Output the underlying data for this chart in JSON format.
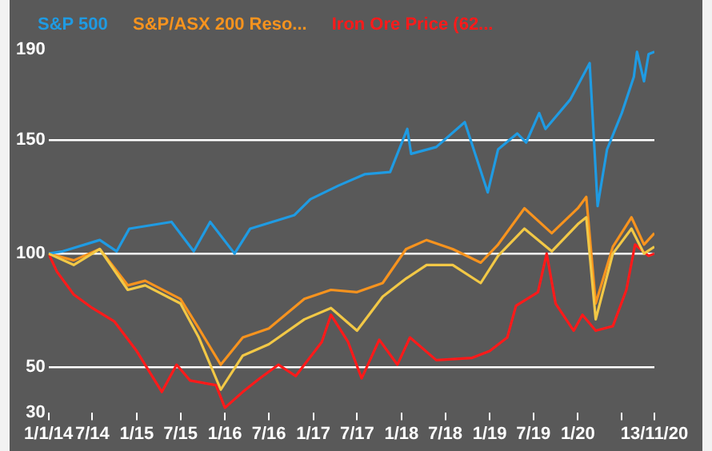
{
  "chart_data": {
    "type": "line",
    "ylim": [
      30,
      190
    ],
    "yticks": [
      30,
      50,
      100,
      150,
      190
    ],
    "xlim": [
      "2014-01-01",
      "2020-11-13"
    ],
    "xticks": [
      {
        "value": "2014-01-01",
        "label": "1/1/14"
      },
      {
        "value": "2014-07-01",
        "label": "7/14"
      },
      {
        "value": "2015-01-01",
        "label": "1/15"
      },
      {
        "value": "2015-07-01",
        "label": "7/15"
      },
      {
        "value": "2016-01-01",
        "label": "1/16"
      },
      {
        "value": "2016-07-01",
        "label": "7/16"
      },
      {
        "value": "2017-01-01",
        "label": "1/17"
      },
      {
        "value": "2017-07-01",
        "label": "7/17"
      },
      {
        "value": "2018-01-01",
        "label": "1/18"
      },
      {
        "value": "2018-07-01",
        "label": "7/18"
      },
      {
        "value": "2019-01-01",
        "label": "1/19"
      },
      {
        "value": "2019-07-01",
        "label": "7/19"
      },
      {
        "value": "2020-01-01",
        "label": "1/20"
      },
      {
        "value": "2020-07-01",
        "label": null
      },
      {
        "value": "2020-11-13",
        "label": "13/11/20"
      }
    ],
    "grid": "y",
    "legend": "top",
    "marker": "none",
    "line_style": "solid",
    "series": [
      {
        "color": "#f2c846",
        "x": [
          "2014-01-01",
          "2014-04-15",
          "2014-08-01",
          "2014-11-25",
          "2015-02-05",
          "2015-07-01",
          "2015-09-15",
          "2015-12-15",
          "2016-03-15",
          "2016-07-01",
          "2016-11-25",
          "2017-03-15",
          "2017-07-01",
          "2017-10-15",
          "2018-01-20",
          "2018-04-15",
          "2018-08-01",
          "2018-11-25",
          "2019-02-05",
          "2019-05-25",
          "2019-09-15",
          "2020-01-01",
          "2020-02-05",
          "2020-03-15",
          "2020-05-25",
          "2020-08-10",
          "2020-10-01",
          "2020-11-13"
        ],
        "values": [
          100,
          95,
          102,
          84,
          86,
          78,
          63,
          40,
          55,
          60,
          71,
          76,
          66,
          81,
          89,
          95,
          95,
          87,
          99,
          111,
          101,
          113,
          116,
          71,
          100,
          111,
          100,
          103
        ]
      },
      {
        "name": "S&P 500",
        "color": "#1f9be3",
        "x": [
          "2014-01-01",
          "2014-03-01",
          "2014-08-01",
          "2014-10-10",
          "2014-12-01",
          "2015-05-25",
          "2015-08-25",
          "2015-11-01",
          "2016-02-10",
          "2016-04-15",
          "2016-10-15",
          "2016-12-20",
          "2017-04-15",
          "2017-08-01",
          "2017-11-15",
          "2018-01-25",
          "2018-02-10",
          "2018-05-25",
          "2018-09-20",
          "2018-12-24",
          "2019-02-05",
          "2019-04-25",
          "2019-06-01",
          "2019-07-25",
          "2019-08-20",
          "2019-12-01",
          "2020-02-19",
          "2020-03-23",
          "2020-05-01",
          "2020-07-01",
          "2020-08-20",
          "2020-09-02",
          "2020-10-01",
          "2020-10-20",
          "2020-11-13"
        ],
        "values": [
          100,
          101,
          106,
          101,
          111,
          114,
          101,
          114,
          100,
          111,
          117,
          124,
          130,
          135,
          136,
          155,
          144,
          147,
          158,
          127,
          146,
          153,
          149,
          162,
          155,
          168,
          184,
          121,
          146,
          162,
          178,
          189,
          176,
          188,
          189
        ]
      },
      {
        "name": "S&P/ASX 200 Reso...",
        "color": "#f7931e",
        "x": [
          "2014-01-01",
          "2014-04-15",
          "2014-08-01",
          "2014-11-25",
          "2015-02-05",
          "2015-07-01",
          "2015-09-15",
          "2015-12-15",
          "2016-03-15",
          "2016-07-01",
          "2016-11-25",
          "2017-03-15",
          "2017-07-01",
          "2017-10-15",
          "2018-01-20",
          "2018-04-15",
          "2018-08-01",
          "2018-11-25",
          "2019-02-05",
          "2019-05-25",
          "2019-09-15",
          "2020-01-01",
          "2020-02-05",
          "2020-03-15",
          "2020-05-25",
          "2020-08-10",
          "2020-10-01",
          "2020-11-13"
        ],
        "values": [
          100,
          97,
          102,
          86,
          88,
          80,
          67,
          51,
          63,
          67,
          80,
          84,
          83,
          87,
          102,
          106,
          102,
          96,
          104,
          120,
          109,
          120,
          125,
          78,
          103,
          116,
          104,
          109
        ]
      },
      {
        "name": "Iron Ore Price (62...",
        "color": "#ff1a1a",
        "x": [
          "2014-01-01",
          "2014-02-05",
          "2014-04-15",
          "2014-07-01",
          "2014-10-01",
          "2015-01-01",
          "2015-04-15",
          "2015-06-15",
          "2015-08-10",
          "2015-11-25",
          "2016-01-01",
          "2016-03-15",
          "2016-05-25",
          "2016-08-10",
          "2016-10-20",
          "2017-02-05",
          "2017-03-15",
          "2017-05-25",
          "2017-07-20",
          "2017-10-01",
          "2017-12-15",
          "2018-02-05",
          "2018-05-25",
          "2018-10-20",
          "2019-01-01",
          "2019-03-15",
          "2019-04-20",
          "2019-07-20",
          "2019-08-25",
          "2019-10-01",
          "2019-12-15",
          "2020-01-20",
          "2020-03-15",
          "2020-05-25",
          "2020-07-20",
          "2020-08-25",
          "2020-10-20",
          "2020-11-13"
        ],
        "values": [
          100,
          92,
          82,
          76,
          70,
          57,
          39,
          51,
          44,
          42,
          32,
          39,
          45,
          51,
          46,
          61,
          73,
          61,
          45,
          62,
          51,
          63,
          53,
          54,
          57,
          63,
          77,
          83,
          100,
          78,
          66,
          73,
          66,
          68,
          84,
          104,
          99,
          100
        ]
      }
    ]
  }
}
